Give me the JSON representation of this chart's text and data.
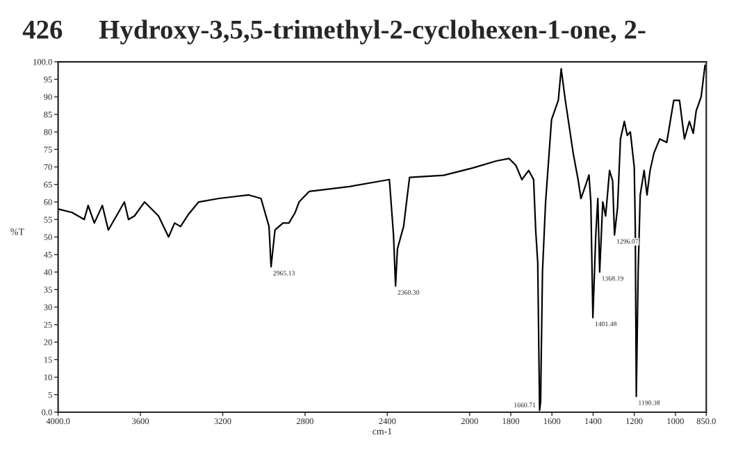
{
  "chart_data": {
    "type": "line",
    "title": "Hydroxy-3,5,5-trimethyl-2-cyclohexen-1-one, 2-",
    "xlabel": "cm-1",
    "ylabel": "%T",
    "annotations": [
      "426",
      {
        "text": "2965.13",
        "x": 2965,
        "y": 41.5
      },
      {
        "text": "2360.30",
        "x": 2360,
        "y": 36
      },
      {
        "text": "1660.71",
        "x": 1660,
        "y": 0.5
      },
      {
        "text": "1401.48",
        "x": 1401,
        "y": 27
      },
      {
        "text": "1368.19",
        "x": 1368,
        "y": 40
      },
      {
        "text": "1296.07",
        "x": 1296,
        "y": 50.6
      },
      {
        "text": "1190.38",
        "x": 1190,
        "y": 4.5
      }
    ],
    "series": [
      {
        "color": "#000000",
        "x": [
          4000,
          3932,
          3873,
          3854,
          3824,
          3785,
          3756,
          3707,
          3678,
          3658,
          3629,
          3580,
          3512,
          3463,
          3434,
          3405,
          3366,
          3317,
          3219,
          3073,
          3014,
          2975,
          2965,
          2946,
          2907,
          2878,
          2848,
          2829,
          2780,
          2585,
          2390,
          2370,
          2360,
          2351,
          2321,
          2292,
          2126,
          1986,
          1871,
          1808,
          1775,
          1746,
          1713,
          1689,
          1679,
          1669,
          1660,
          1655,
          1646,
          1631,
          1602,
          1569,
          1555,
          1535,
          1511,
          1497,
          1473,
          1459,
          1435,
          1420,
          1411,
          1401,
          1387,
          1377,
          1368,
          1353,
          1339,
          1320,
          1305,
          1296,
          1281,
          1267,
          1248,
          1234,
          1219,
          1200,
          1195,
          1190,
          1181,
          1171,
          1152,
          1138,
          1123,
          1104,
          1076,
          1042,
          1008,
          980,
          956,
          932,
          913,
          899,
          875,
          856
        ],
        "values": [
          58,
          57,
          55,
          59,
          54,
          59,
          52,
          57,
          60,
          55,
          56,
          60,
          56,
          50,
          54,
          53,
          56.5,
          60,
          61,
          62,
          61,
          53,
          41.5,
          52,
          54,
          54,
          57,
          60,
          63,
          64.4,
          66.4,
          50.6,
          36,
          46.6,
          53,
          67,
          67.6,
          69.7,
          71.7,
          72.4,
          70.4,
          66.4,
          69,
          66.4,
          52,
          42.7,
          0.5,
          3,
          40,
          59.8,
          83.5,
          89,
          98,
          89,
          79.6,
          74,
          66.4,
          61,
          65,
          67.7,
          60,
          27,
          50.6,
          61,
          40,
          60,
          56,
          69,
          66,
          50.6,
          58.5,
          78,
          83,
          79,
          80,
          70,
          53,
          4.5,
          40,
          62,
          69,
          62,
          69,
          74,
          78,
          77,
          89,
          89,
          78,
          83,
          79.6,
          86,
          90,
          99
        ]
      }
    ],
    "xlim": [
      4000,
      850
    ],
    "xticks": [
      {
        "value": 4000,
        "label": "4000.0"
      },
      3600,
      3200,
      2800,
      2400,
      2000,
      1800,
      1600,
      1400,
      1200,
      1000,
      {
        "value": 850,
        "label": "850.0"
      }
    ],
    "ylim": [
      0,
      100
    ],
    "yticks": [
      {
        "value": 0,
        "label": "0.0"
      },
      5,
      10,
      15,
      20,
      25,
      30,
      35,
      40,
      45,
      50,
      55,
      60,
      65,
      70,
      75,
      80,
      85,
      90,
      95,
      {
        "value": 100,
        "label": "100.0"
      }
    ],
    "grid": false,
    "legend": false
  }
}
